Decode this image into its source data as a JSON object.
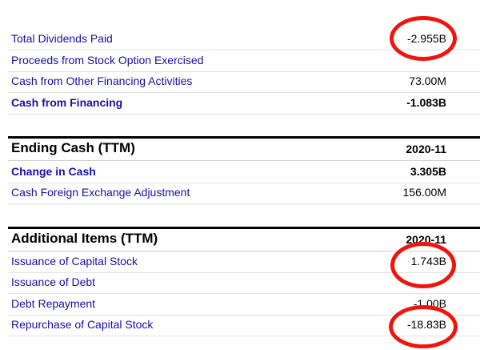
{
  "cash_flow_rows": [
    {
      "label": "Total Dividends Paid",
      "value": "-2.955B"
    },
    {
      "label": "Proceeds from Stock Option Exercised",
      "value": ""
    },
    {
      "label": "Cash from Other Financing Activities",
      "value": "73.00M"
    },
    {
      "label": "Cash from Financing",
      "value": "-1.083B"
    }
  ],
  "ending_cash": {
    "title": "Ending Cash (TTM)",
    "period": "2020-11",
    "rows": [
      {
        "label": "Change in Cash",
        "value": "3.305B"
      },
      {
        "label": "Cash Foreign Exchange Adjustment",
        "value": "156.00M"
      }
    ]
  },
  "additional_items": {
    "title": "Additional Items (TTM)",
    "period": "2020-11",
    "rows": [
      {
        "label": "Issuance of Capital Stock",
        "value": "1.743B"
      },
      {
        "label": "Issuance of Debt",
        "value": ""
      },
      {
        "label": "Debt Repayment",
        "value": "-1.00B"
      },
      {
        "label": "Repurchase of Capital Stock",
        "value": "-18.83B"
      }
    ]
  },
  "annotation_color": "#f0140e"
}
